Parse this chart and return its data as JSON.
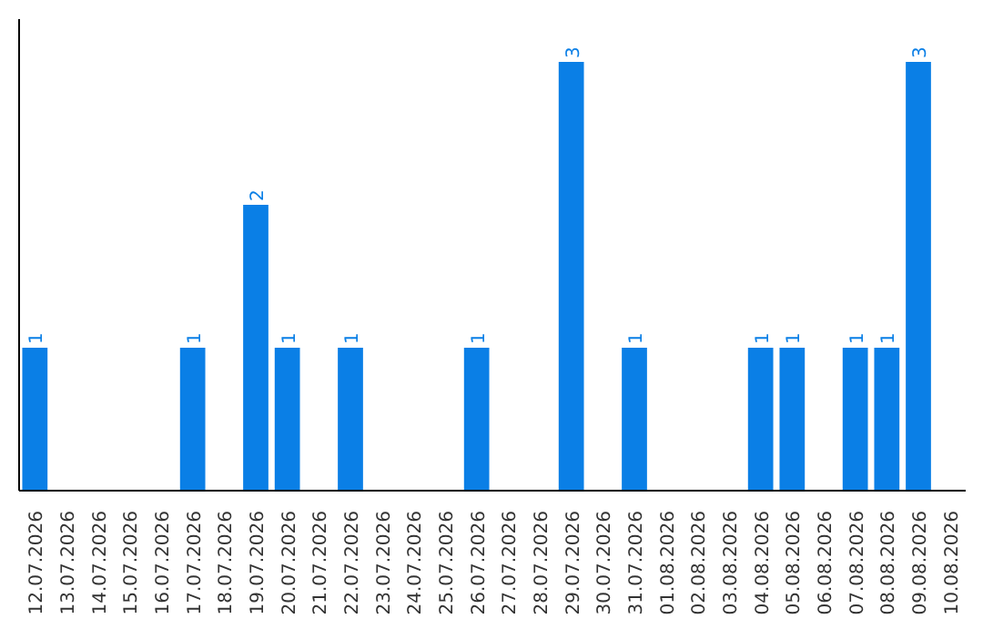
{
  "chart_data": {
    "type": "bar",
    "categories": [
      "12.07.2026",
      "13.07.2026",
      "14.07.2026",
      "15.07.2026",
      "16.07.2026",
      "17.07.2026",
      "18.07.2026",
      "19.07.2026",
      "20.07.2026",
      "21.07.2026",
      "22.07.2026",
      "23.07.2026",
      "24.07.2026",
      "25.07.2026",
      "26.07.2026",
      "27.07.2026",
      "28.07.2026",
      "29.07.2026",
      "30.07.2026",
      "31.07.2026",
      "01.08.2026",
      "02.08.2026",
      "03.08.2026",
      "04.08.2026",
      "05.08.2026",
      "06.08.2026",
      "07.08.2026",
      "08.08.2026",
      "09.08.2026",
      "10.08.2026"
    ],
    "values": [
      1,
      0,
      0,
      0,
      0,
      1,
      0,
      2,
      1,
      0,
      1,
      0,
      0,
      0,
      1,
      0,
      0,
      3,
      0,
      1,
      0,
      0,
      0,
      1,
      1,
      0,
      1,
      1,
      3,
      0
    ],
    "value_labels": [
      "1",
      null,
      null,
      null,
      null,
      "1",
      null,
      "2",
      "1",
      null,
      "1",
      null,
      null,
      null,
      "1",
      null,
      null,
      "3",
      null,
      "1",
      null,
      null,
      null,
      "1",
      "1",
      null,
      "1",
      "1",
      "3",
      null
    ],
    "color": "#0a7fe6",
    "grid": false,
    "tick_labels": "x"
  }
}
